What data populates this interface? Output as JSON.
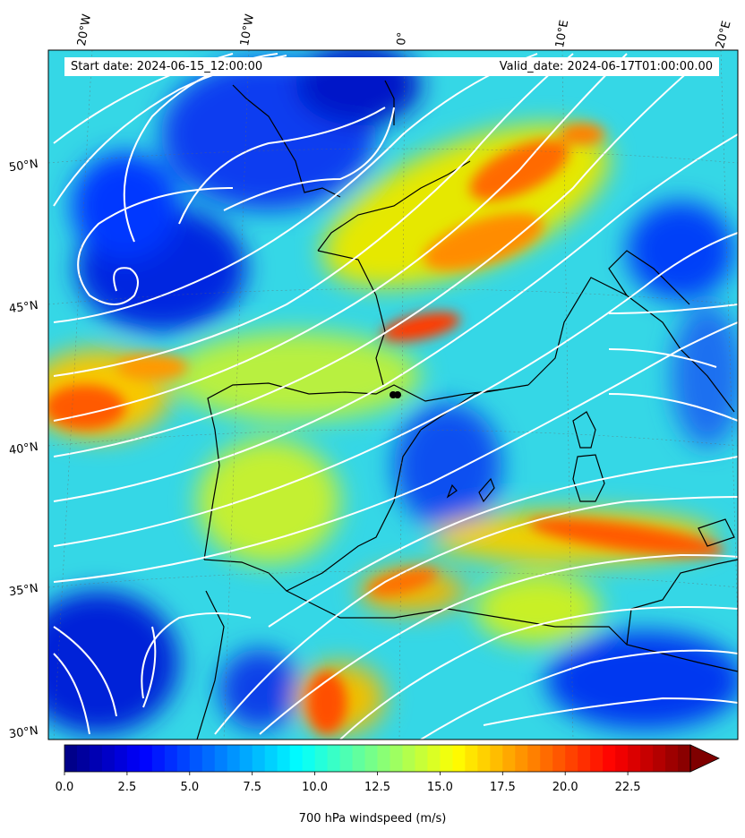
{
  "header": {
    "start_date": "Start date: 2024-06-15_12:00:00",
    "valid_date": "Valid_date: 2024-06-17T01:00:00.00"
  },
  "map": {
    "longitude_labels": [
      "20°W",
      "10°W",
      "0°",
      "10°E",
      "20°E"
    ],
    "latitude_labels": [
      "50°N",
      "45°N",
      "40°N",
      "35°N",
      "30°N"
    ],
    "field": "700 hPa windspeed",
    "overlay": "white streamlines",
    "marker_color": "#000000"
  },
  "colorbar": {
    "label": "700 hPa windspeed (m/s)",
    "ticks": [
      "0.0",
      "2.5",
      "5.0",
      "7.5",
      "10.0",
      "12.5",
      "15.0",
      "17.5",
      "20.0",
      "22.5"
    ],
    "vmin": 0,
    "vmax": 25,
    "extend": "max",
    "colormap": "jet",
    "over_color": "#7f0000"
  }
}
